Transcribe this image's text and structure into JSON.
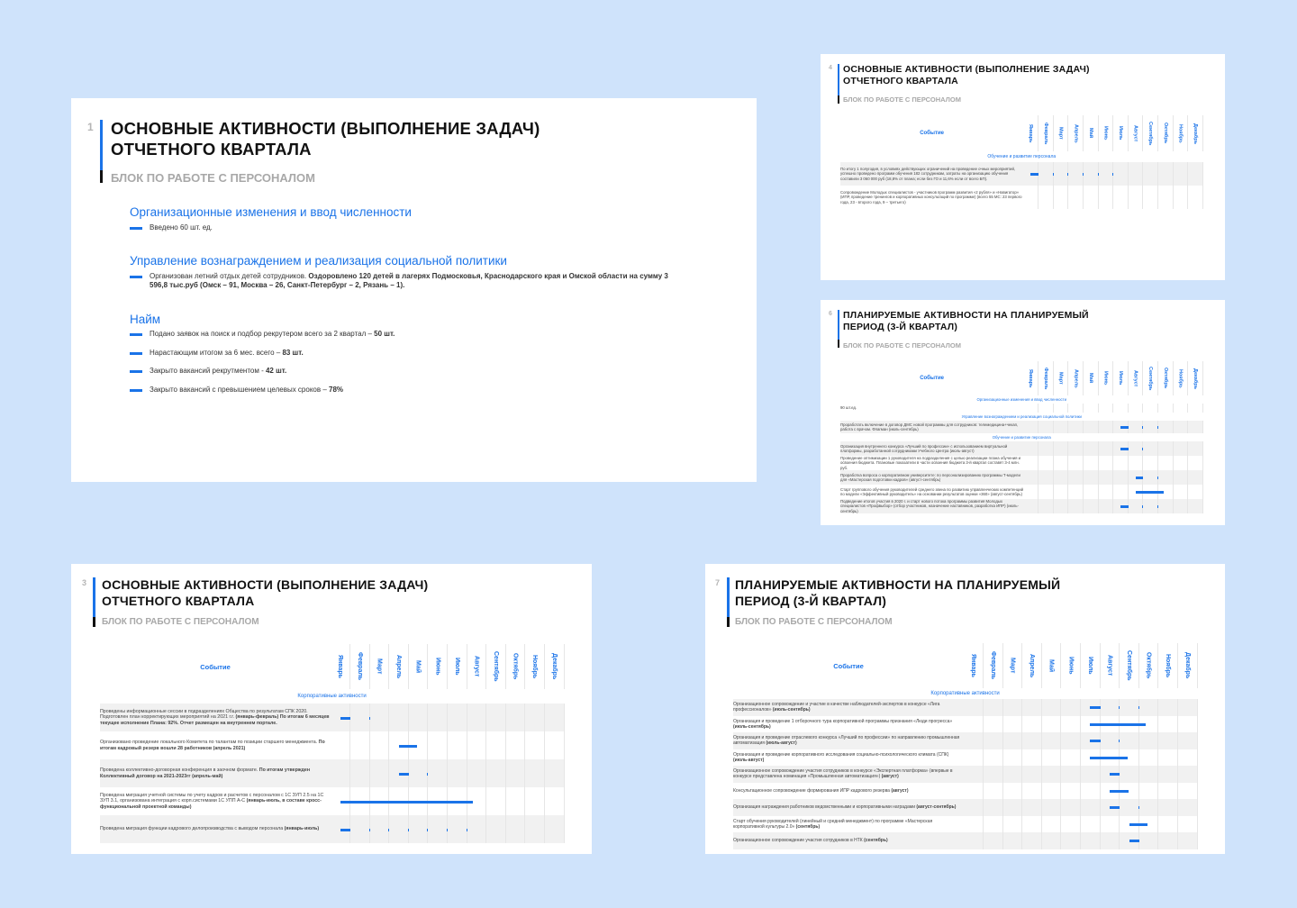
{
  "months": [
    "Январь",
    "Февраль",
    "Март",
    "Апрель",
    "Май",
    "Июнь",
    "Июль",
    "Август",
    "Сентябрь",
    "Октябрь",
    "Ноябрь",
    "Декабрь"
  ],
  "event_header": "Событие",
  "slide1": {
    "number": "1",
    "title_line1": "Основные активности (выполнение задач)",
    "title_line2": "отчетного квартала",
    "subtitle": "Блок по работе с персоналом",
    "sec1_title": "Организационные изменения и ввод численности",
    "sec1_b1": "Введено 60 шт. ед.",
    "sec2_title": "Управление вознаграждением и реализация социальной политики",
    "sec2_b1_a": "Организован летний отдых детей сотрудников. ",
    "sec2_b1_b": "Оздоровлено 120 детей в лагерях Подмосковья, Краснодарского края и Омской области на сумму 3 596,8 тыс.руб (Омск – 91, Москва – 26, Санкт-Петербург – 2, Рязань – 1).",
    "sec3_title": "Найм",
    "sec3_b1_a": "Подано заявок на поиск и подбор рекрутером  всего за 2 квартал – ",
    "sec3_b1_b": "50 шт.",
    "sec3_b2_a": "Нарастающим итогом за 6 мес. всего – ",
    "sec3_b2_b": "83 шт.",
    "sec3_b3_a": "Закрыто вакансий рекрутментом - ",
    "sec3_b3_b": "42 шт.",
    "sec3_b4_a": "Закрыто вакансий с превышением целевых сроков – ",
    "sec3_b4_b": "78%"
  },
  "slide4": {
    "number": "4",
    "title_line1": "Основные активности (выполнение задач)",
    "title_line2": "отчетного квартала",
    "subtitle": "Блок по работе с персоналом",
    "group1": "Обучение и развитие персонала",
    "rows": [
      {
        "text": "По итогу 1 полугодия, в условиях действующих ограничений на проведение очных мероприятий, успешно проведено программ обучения 182 сотрудникам, затраты на организацию обучения составили 3 060 000 руб (18,8% от плана; если без ГО и 11,6% если от всего БП).",
        "bar": [
          0,
          6
        ]
      },
      {
        "text": "Сопровождение Молодых специалистов - участников программ развития «2 рубля» и «Навигатор» (ИПР, проведение тренингов и корпоративных консультаций по программе) (всего 55 МС: 23 первого года, 23 - второго года, 9 – третьего)",
        "bar": null
      }
    ]
  },
  "slide6": {
    "number": "6",
    "title_line1": "Планируемые активности на планируемый",
    "title_line2": "период (3-й квартал)",
    "subtitle": "Блок по работе с персоналом",
    "group1": "Организационные изменения и ввод численности",
    "row1": "90 шт.ед.",
    "group2": "Управление вознаграждением и реализация социальной политики",
    "row2": "Проработать включение в договор ДМС новой программы для сотрудников: телемедицина+чекап, работа с врачом. Флагман (июль-сентябрь)",
    "group3": "Обучение и развитие персонала",
    "rows3": [
      {
        "text": "Организация внутреннего конкурса «Лучший по профессии» с использованием виртуальной платформы, разработанной сотрудниками Учебного Центра (июль-август)",
        "bar": [
          6,
          8
        ]
      },
      {
        "text": "Проведение оптимизации 1 руководителя на подразделения с целью реализации плана обучения и освоения бюджета. Плановые показатели в части освоения бюджета 3-й квартал составят 3-4 млн. руб.",
        "bar": null
      },
      {
        "text": "Проработка вопроса о корпоративном университете: по персонализированию программы Т-модели для «Мастерская подготовки кадров» (август-сентябрь)",
        "bar": [
          7,
          9
        ]
      },
      {
        "text": "Старт группового обучения руководителей среднего звена по развитию управленческих компетенций по модели «Эффективный руководитель» на основании результатов оценки «360» (август-сентябрь)",
        "bar": [
          7,
          9
        ]
      },
      {
        "text": "Подведение итогов участия в 2020 г. и старт нового потока программы развития Молодых специалистов «Профвыбор» (отбор участников, назначение наставников, разработка ИПР) (июль-сентябрь)",
        "bar": [
          6,
          9
        ]
      }
    ]
  },
  "slide3": {
    "number": "3",
    "title_line1": "Основные активности (выполнение задач)",
    "title_line2": "отчетного квартала",
    "subtitle": "Блок по работе с персоналом",
    "group1": "Корпоративные активности",
    "rows": [
      {
        "text_a": "Проведены информационные сессии в подразделениях Общества по результатам СПК 2020. Подготовлен план корректирующих мероприятий на 2021 г.г. ",
        "text_b": "(январь-февраль) По итогам 6 месяцев текущее исполнение Плана: 92%. Отчет размещен на внутреннем портале.",
        "bar": [
          0,
          2
        ]
      },
      {
        "text_a": "Организовано проведение локального Комитета по талантам по позиции старшего менеджмента. ",
        "text_b": "По итогам кадровый резерв вошли 28 работников (апрель 2021)",
        "bar": [
          3,
          4
        ]
      },
      {
        "text_a": "Проведена коллективно-договорная конференция в заочном формате. ",
        "text_b": "По итогам утвержден Коллективный договор на 2021-2023гг (апрель-май)",
        "bar": [
          3,
          5
        ]
      },
      {
        "text_a": "Проведена миграция учетной системы по учету кадров и расчетов с персоналом с 1С ЗУП 2.5 на 1С ЗУП 3.1, организована интеграция с корп.системами 1С УПП А-С ",
        "text_b": "(январь-июль, в составе кросс-функциональной проектной команды)",
        "bar": [
          0,
          7
        ]
      },
      {
        "text_a": "Проведена миграция функции кадрового делопроизводства с выводом персонала ",
        "text_b": "(январь-июль)",
        "bar": [
          0,
          7
        ]
      }
    ]
  },
  "slide7": {
    "number": "7",
    "title_line1": "Планируемые активности на планируемый",
    "title_line2": "период (3-й квартал)",
    "subtitle": "Блок по работе с персоналом",
    "group1": "Корпоративные активности",
    "rows": [
      {
        "text_a": "Организационное сопровождение и участие в качестве наблюдателей-экспертов в конкурсе «Лига профессионалов» ",
        "text_b": "(июль-сентябрь)",
        "bar": [
          6,
          9
        ]
      },
      {
        "text_a": "Организация и проведение 1 отборочного тура корпоративной программы признания «Люди прогресса» ",
        "text_b": "(июль-сентябрь)",
        "bar": [
          6,
          9
        ]
      },
      {
        "text_a": "Организация и проведение отраслевого конкурса «Лучший по профессии» по направлению промышленная автоматизация ",
        "text_b": "(июль-август)",
        "bar": [
          6,
          8
        ]
      },
      {
        "text_a": "Организация и проведение корпоративного исследования социально-психологического климата (СПК) ",
        "text_b": "(июль-август)",
        "bar": [
          6,
          8
        ]
      },
      {
        "text_a": "Организационное сопровождение участия сотрудников в конкурсе «Экспертная платформа» (впервые в конкурсе представлена номинация «Промышленная автоматизация») ",
        "text_b": "(август)",
        "bar": [
          7,
          8
        ]
      },
      {
        "text_a": "Консультационное сопровождение формирования ИПР кадрового резерва ",
        "text_b": "(август)",
        "bar": [
          7,
          8
        ]
      },
      {
        "text_a": "Организация награждения работников ведомственными и корпоративными наградами ",
        "text_b": "(август-сентябрь)",
        "bar": [
          7,
          9
        ]
      },
      {
        "text_a": "Старт обучения руководителей (линейный и средний менеджмент) по программе «Мастерская корпоративной культуры 2.0» ",
        "text_b": "(сентябрь)",
        "bar": [
          8,
          9
        ]
      },
      {
        "text_a": "Организационное сопровождение участия сотрудников в НТК ",
        "text_b": "(сентябрь)",
        "bar": [
          8,
          9
        ]
      }
    ]
  }
}
